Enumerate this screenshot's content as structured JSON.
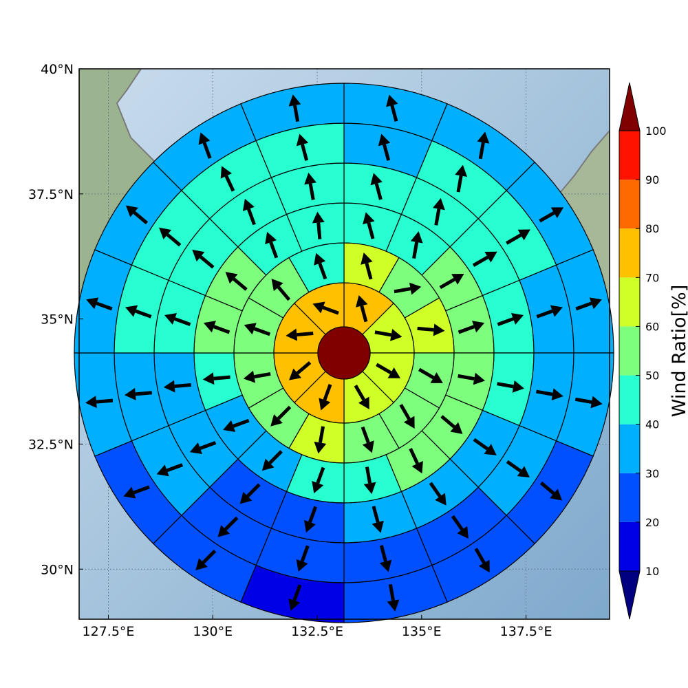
{
  "chart_data": {
    "type": "heatmap",
    "title": "",
    "xlabel": "",
    "ylabel": "",
    "map": {
      "lon_range": [
        126.8,
        139.5
      ],
      "lat_range": [
        29.0,
        40.0
      ],
      "x_ticks": [
        {
          "value": 127.5,
          "label": "127.5°E"
        },
        {
          "value": 130.0,
          "label": "130°E"
        },
        {
          "value": 132.5,
          "label": "132.5°E"
        },
        {
          "value": 135.0,
          "label": "135°E"
        },
        {
          "value": 137.5,
          "label": "137.5°E"
        }
      ],
      "y_ticks": [
        {
          "value": 40.0,
          "label": "40°N"
        },
        {
          "value": 37.5,
          "label": "37.5°N"
        },
        {
          "value": 35.0,
          "label": "35°N"
        },
        {
          "value": 32.5,
          "label": "32.5°N"
        },
        {
          "value": 30.0,
          "label": "30°N"
        }
      ],
      "grid": true,
      "center_ratio": 100
    },
    "rings": [
      {
        "ratio": [
          70,
          65,
          65,
          60,
          70,
          70,
          75,
          75
        ]
      },
      {
        "ratio": [
          60,
          55,
          60,
          55,
          55,
          50,
          60,
          55,
          55,
          50,
          50,
          45
        ]
      },
      {
        "ratio": [
          45,
          45,
          55,
          55,
          55,
          50,
          50,
          45,
          40,
          35,
          35,
          45,
          50,
          55,
          45,
          40
        ]
      },
      {
        "ratio": [
          40,
          45,
          45,
          40,
          40,
          35,
          35,
          30,
          25,
          25,
          30,
          35,
          40,
          45,
          40,
          40
        ]
      },
      {
        "ratio": [
          35,
          40,
          40,
          35,
          30,
          30,
          25,
          20,
          20,
          25,
          30,
          35,
          40,
          45,
          45,
          40
        ]
      },
      {
        "ratio": [
          35,
          35,
          35,
          30,
          30,
          25,
          20,
          20,
          15,
          20,
          25,
          30,
          30,
          35,
          35,
          30
        ]
      }
    ],
    "arrow_dirs": [
      [
        -15,
        100,
        120,
        150,
        200,
        230,
        265,
        290
      ],
      [
        -15,
        80,
        95,
        120,
        150,
        160,
        190,
        225,
        260,
        290,
        320,
        340
      ],
      [
        -15,
        10,
        60,
        70,
        100,
        130,
        155,
        170,
        200,
        225,
        250,
        265,
        290,
        310,
        340,
        355
      ],
      [
        -15,
        10,
        60,
        70,
        100,
        125,
        145,
        165,
        200,
        225,
        250,
        265,
        290,
        310,
        340,
        350
      ],
      [
        -15,
        10,
        60,
        70,
        100,
        125,
        145,
        165,
        200,
        225,
        250,
        265,
        290,
        310,
        335,
        345
      ],
      [
        -15,
        10,
        60,
        70,
        100,
        130,
        150,
        170,
        200,
        225,
        250,
        265,
        290,
        310,
        340,
        350
      ]
    ],
    "colorbar": {
      "label": "Wind Ratio[%]",
      "ticks": [
        "10",
        "20",
        "30",
        "40",
        "50",
        "60",
        "70",
        "80",
        "90",
        "100"
      ],
      "bins": [
        {
          "min": 10,
          "max": 20,
          "color": "#0000e6"
        },
        {
          "min": 20,
          "max": 30,
          "color": "#0050ff"
        },
        {
          "min": 30,
          "max": 40,
          "color": "#00b0ff"
        },
        {
          "min": 40,
          "max": 50,
          "color": "#28ffd0"
        },
        {
          "min": 50,
          "max": 60,
          "color": "#7dff7d"
        },
        {
          "min": 60,
          "max": 70,
          "color": "#d0ff28"
        },
        {
          "min": 70,
          "max": 80,
          "color": "#ffc000"
        },
        {
          "min": 80,
          "max": 90,
          "color": "#ff6a00"
        },
        {
          "min": 90,
          "max": 100,
          "color": "#ff1300"
        }
      ],
      "under_color": "#000080",
      "over_color": "#800000"
    }
  }
}
